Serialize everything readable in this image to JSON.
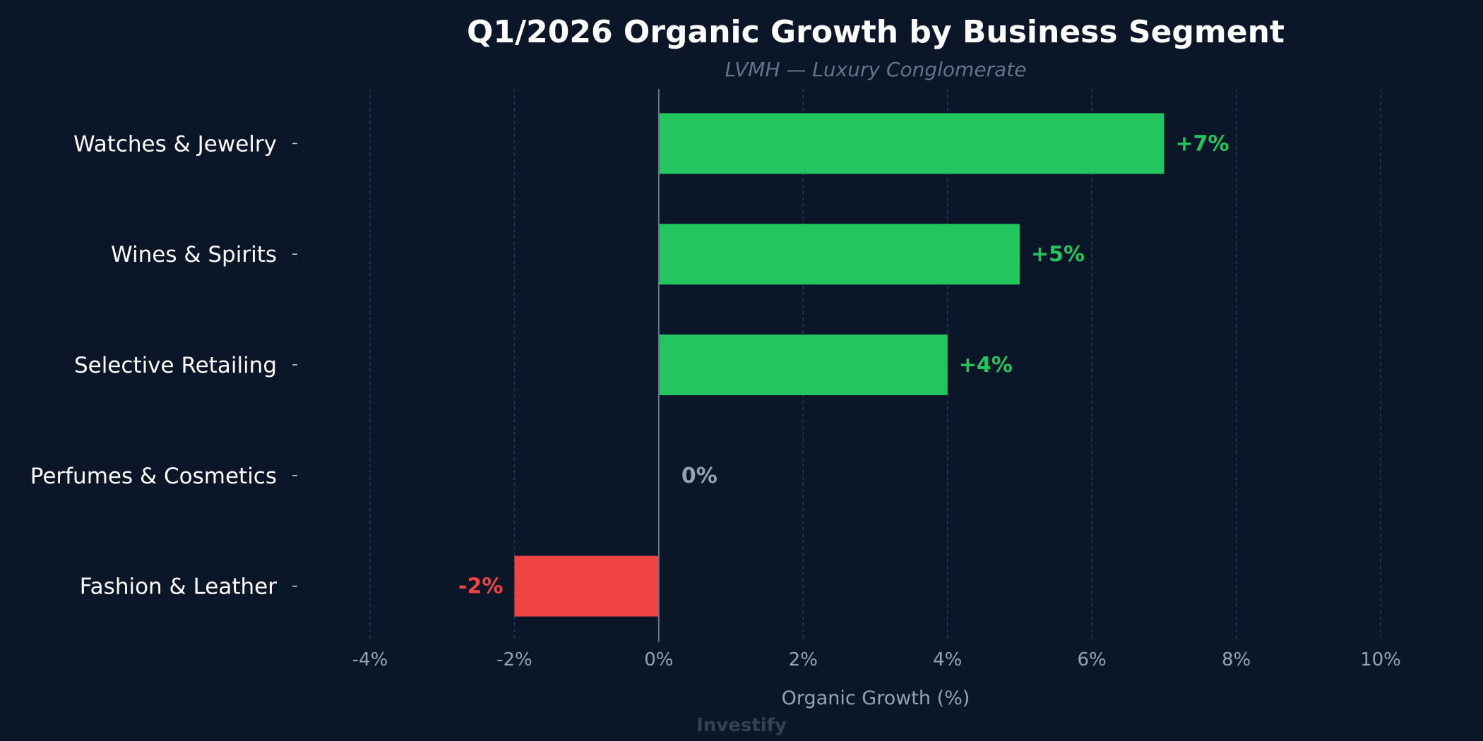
{
  "chart_data": {
    "type": "bar",
    "orientation": "horizontal",
    "title": "Q1/2026 Organic Growth by Business Segment",
    "subtitle": "LVMH — Luxury Conglomerate",
    "xlabel": "Organic Growth (%)",
    "ylabel": "",
    "categories": [
      "Watches & Jewelry",
      "Wines & Spirits",
      "Selective Retailing",
      "Perfumes & Cosmetics",
      "Fashion & Leather"
    ],
    "values": [
      7,
      5,
      4,
      0,
      -2
    ],
    "data_labels": [
      "+7%",
      "+5%",
      "+4%",
      "0%",
      "-2%"
    ],
    "xlim": [
      -4,
      10
    ],
    "xticks": [
      -4,
      -2,
      0,
      2,
      4,
      6,
      8,
      10
    ],
    "xtick_labels": [
      "-4%",
      "-2%",
      "0%",
      "2%",
      "4%",
      "6%",
      "8%",
      "10%"
    ],
    "grid": "vertical dashed",
    "colors": {
      "positive": "#22c55e",
      "negative": "#ef4444",
      "zero": "#94a3b8",
      "background": "#0b1628",
      "grid": "#1e3a5f"
    }
  },
  "watermark": "Investify"
}
